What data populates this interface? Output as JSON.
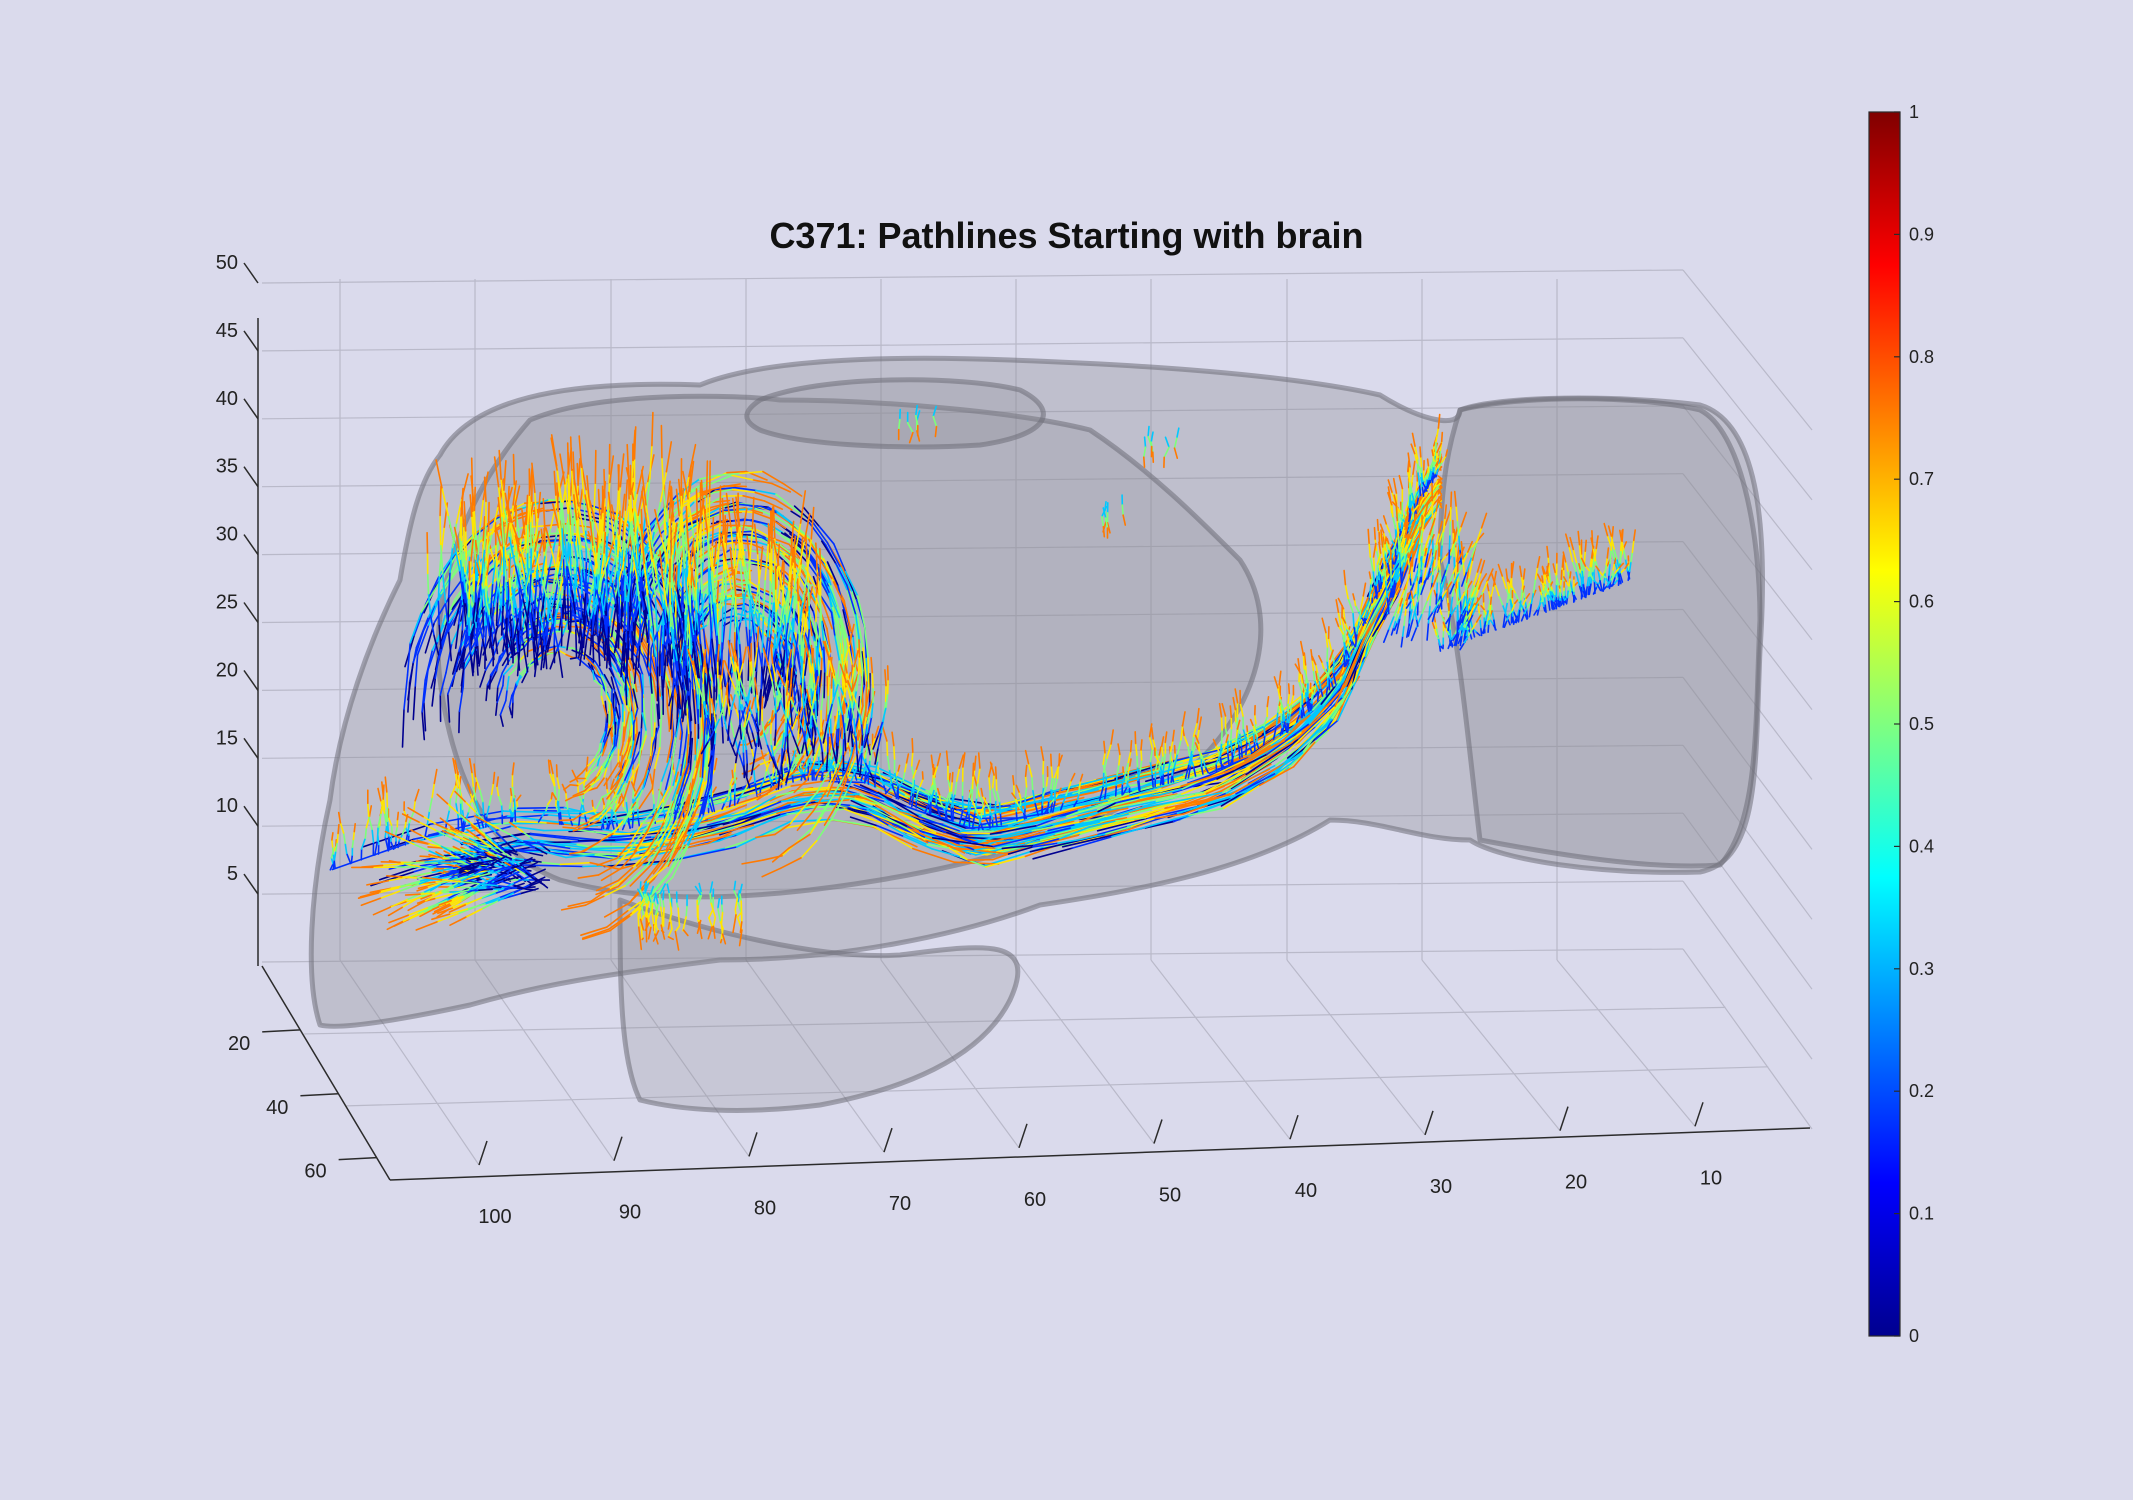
{
  "chart_data": {
    "type": "3d-pathlines",
    "title": "C371: Pathlines Starting with brain",
    "axes": {
      "x": {
        "ticks": [
          100,
          90,
          80,
          70,
          60,
          50,
          40,
          30,
          20,
          10
        ],
        "direction": "decreasing-left-to-right"
      },
      "y": {
        "ticks": [
          20,
          40,
          60
        ]
      },
      "z": {
        "ticks": [
          5,
          10,
          15,
          20,
          25,
          30,
          35,
          40,
          45,
          50
        ],
        "lim": [
          0,
          50
        ]
      },
      "grid": true
    },
    "colorbar": {
      "colormap": "jet",
      "lim": [
        0,
        1
      ],
      "ticks": [
        0,
        0.1,
        0.2,
        0.3,
        0.4,
        0.5,
        0.6,
        0.7,
        0.8,
        0.9,
        1
      ],
      "tick_labels": [
        "0",
        "0.1",
        "0.2",
        "0.3",
        "0.4",
        "0.5",
        "0.6",
        "0.7",
        "0.8",
        "0.9",
        "1"
      ],
      "placement": "right"
    },
    "surface": {
      "name": "brain",
      "color": "#8c8c96",
      "opacity": 0.35
    },
    "pathline_colors": [
      "#00008f",
      "#0030ff",
      "#00c8ff",
      "#7dff7a",
      "#ffe600",
      "#ff7a00",
      "#e00000"
    ]
  }
}
